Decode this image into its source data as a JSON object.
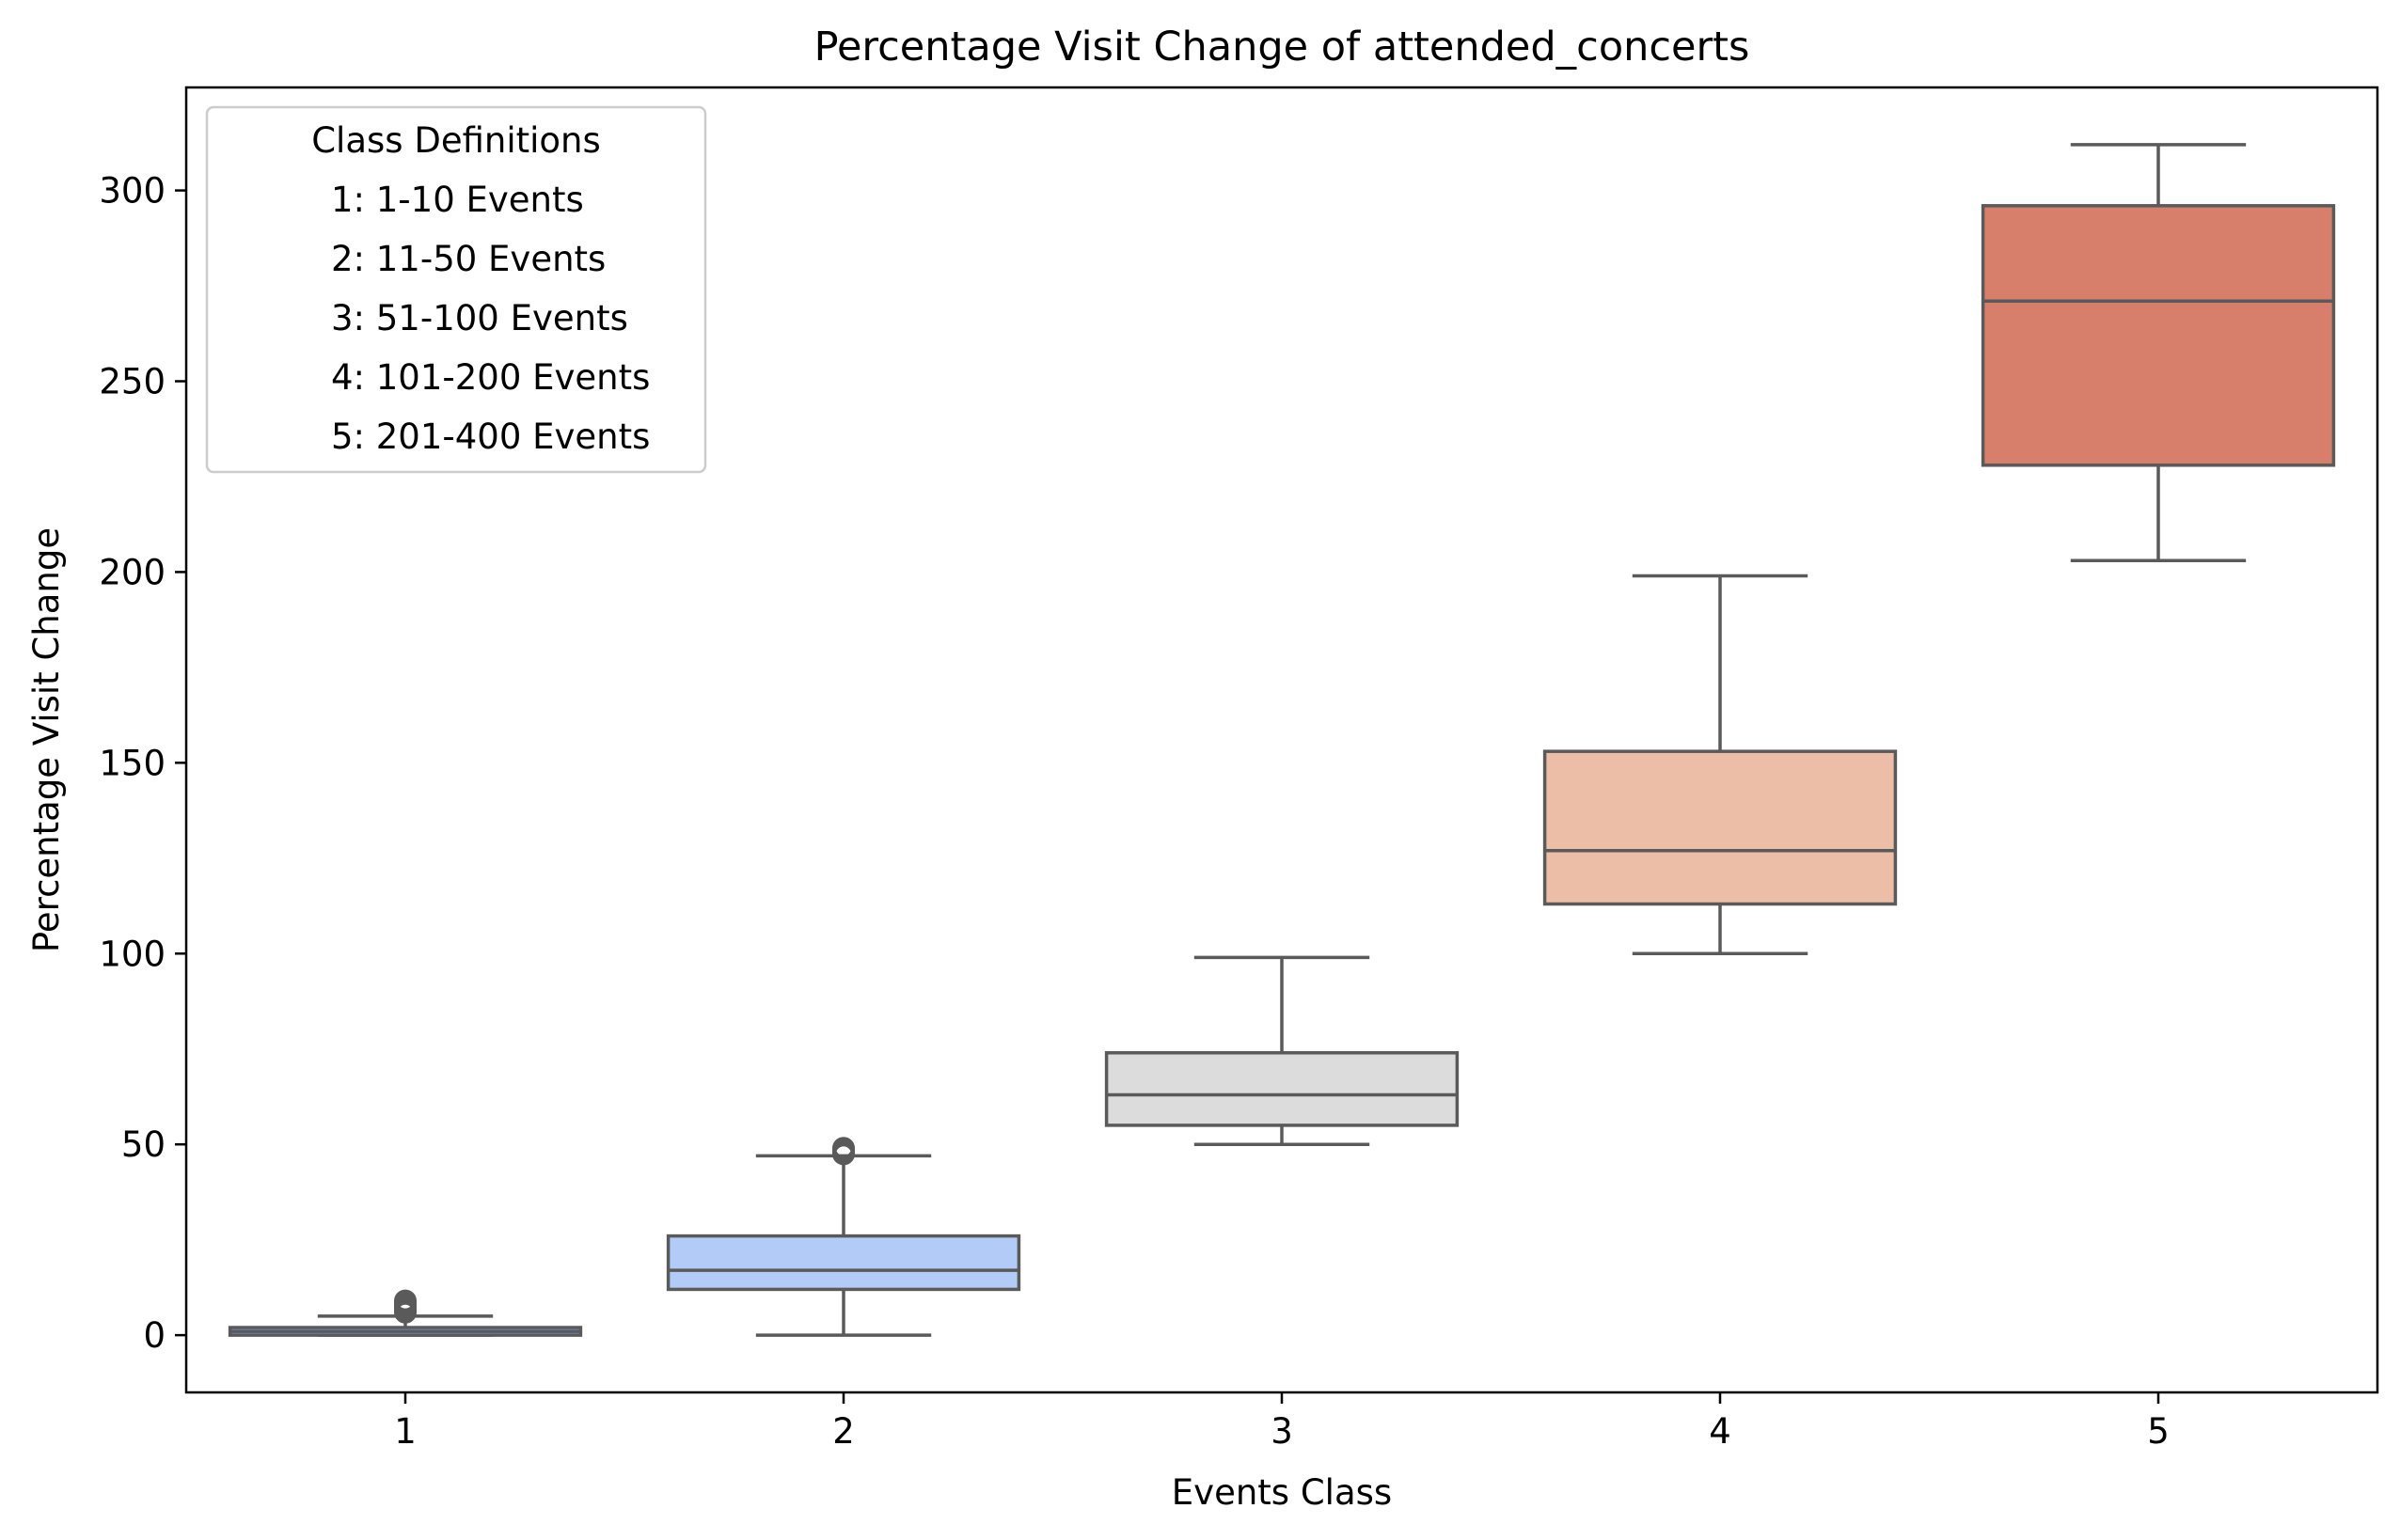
{
  "chart_data": {
    "type": "box",
    "title": "Percentage Visit Change of attended_concerts",
    "xlabel": "Events Class",
    "ylabel": "Percentage Visit Change",
    "categories": [
      "1",
      "2",
      "3",
      "4",
      "5"
    ],
    "ylim": [
      -15,
      327
    ],
    "yticks": [
      0,
      50,
      100,
      150,
      200,
      250,
      300
    ],
    "grid": false,
    "boxes": [
      {
        "category": "1",
        "whisker_low": 0,
        "q1": 0,
        "median": 1,
        "q3": 2,
        "whisker_high": 5,
        "outliers": [
          6,
          6.5,
          7,
          7.5,
          8,
          8.5,
          9
        ],
        "color": "#7b9ff2"
      },
      {
        "category": "2",
        "whisker_low": 0,
        "q1": 12,
        "median": 17,
        "q3": 26,
        "whisker_high": 47,
        "outliers": [
          47.5,
          48,
          48.5,
          49
        ],
        "color": "#b2cbf7"
      },
      {
        "category": "3",
        "whisker_low": 50,
        "q1": 55,
        "median": 63,
        "q3": 74,
        "whisker_high": 99,
        "outliers": [],
        "color": "#dcdcdc"
      },
      {
        "category": "4",
        "whisker_low": 100,
        "q1": 113,
        "median": 127,
        "q3": 153,
        "whisker_high": 199,
        "outliers": [],
        "color": "#edbea7"
      },
      {
        "category": "5",
        "whisker_low": 203,
        "q1": 228,
        "median": 271,
        "q3": 296,
        "whisker_high": 312,
        "outliers": [],
        "color": "#d77f6b"
      }
    ],
    "legend": {
      "title": "Class Definitions",
      "placement": "top-left",
      "entries": [
        "1: 1-10 Events",
        "2: 11-50 Events",
        "3: 51-100 Events",
        "4: 101-200 Events",
        "5: 201-400 Events"
      ]
    }
  }
}
